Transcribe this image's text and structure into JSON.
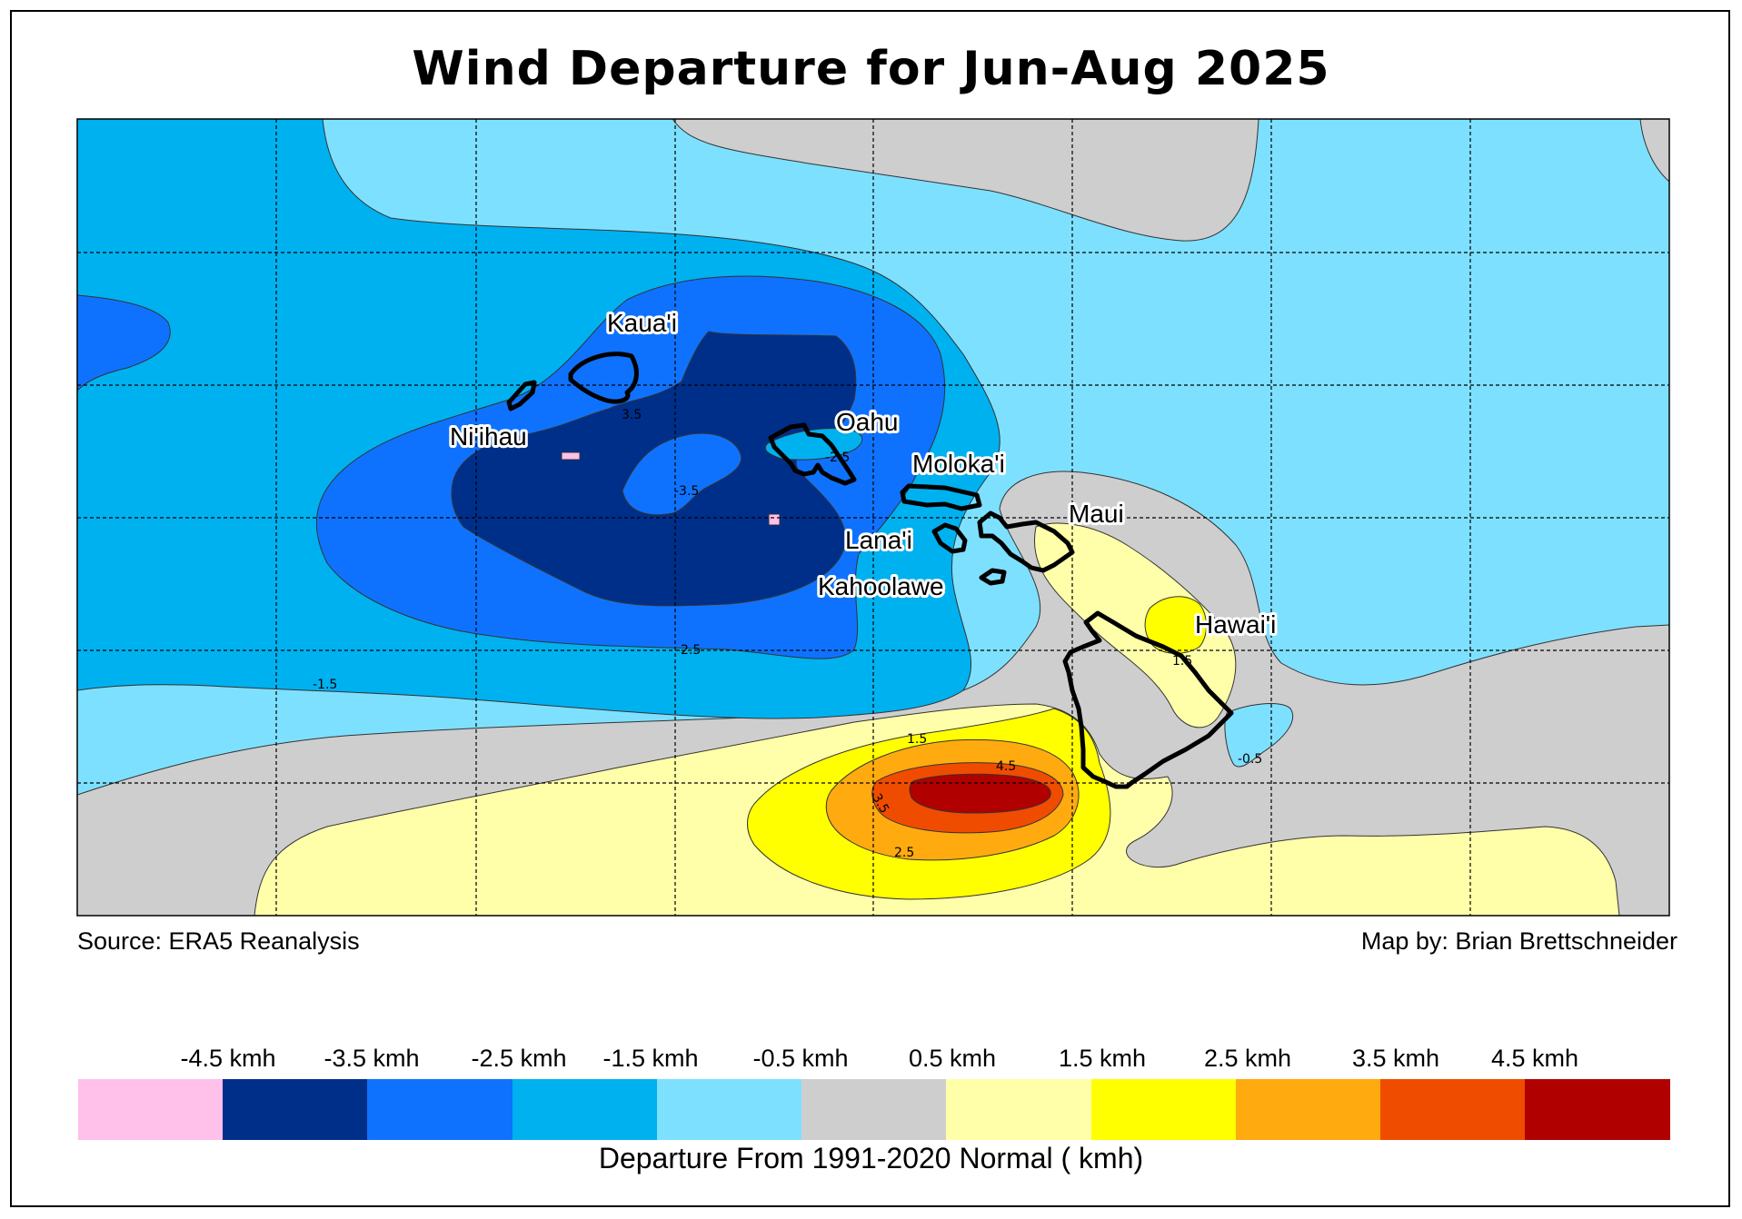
{
  "title": "Wind Departure for Jun-Aug 2025",
  "source": "Source: ERA5 Reanalysis",
  "credit": "Map by: Brian Brettschneider",
  "colorbar": {
    "title": "Departure From 1991-2020 Normal ( kmh)",
    "labels": [
      "-4.5 kmh",
      "-3.5 kmh",
      "-2.5 kmh",
      "-1.5 kmh",
      "-0.5 kmh",
      "0.5 kmh",
      "1.5 kmh",
      "2.5 kmh",
      "3.5 kmh",
      "4.5 kmh"
    ],
    "colors": [
      "#ffc0ea",
      "#002f8a",
      "#0f72ff",
      "#00b1f0",
      "#7ee0ff",
      "#cecece",
      "#ffffaa",
      "#ffff00",
      "#ffaa0f",
      "#f04c00",
      "#b00000"
    ]
  },
  "map": {
    "islands": [
      "Kaua'i",
      "Ni'ihau",
      "Oahu",
      "Moloka'i",
      "Maui",
      "Lana'i",
      "Kahoolawe",
      "Hawai'i"
    ],
    "contour_labels": [
      "3.5",
      "-2.5",
      "-3.5",
      "-2.5",
      "-1.5",
      "1.5",
      "4.5",
      "3.5",
      "2.5",
      "1.5",
      "-0.5"
    ],
    "colors": {
      "land_outline": "#000000",
      "grid": "#000000"
    }
  }
}
